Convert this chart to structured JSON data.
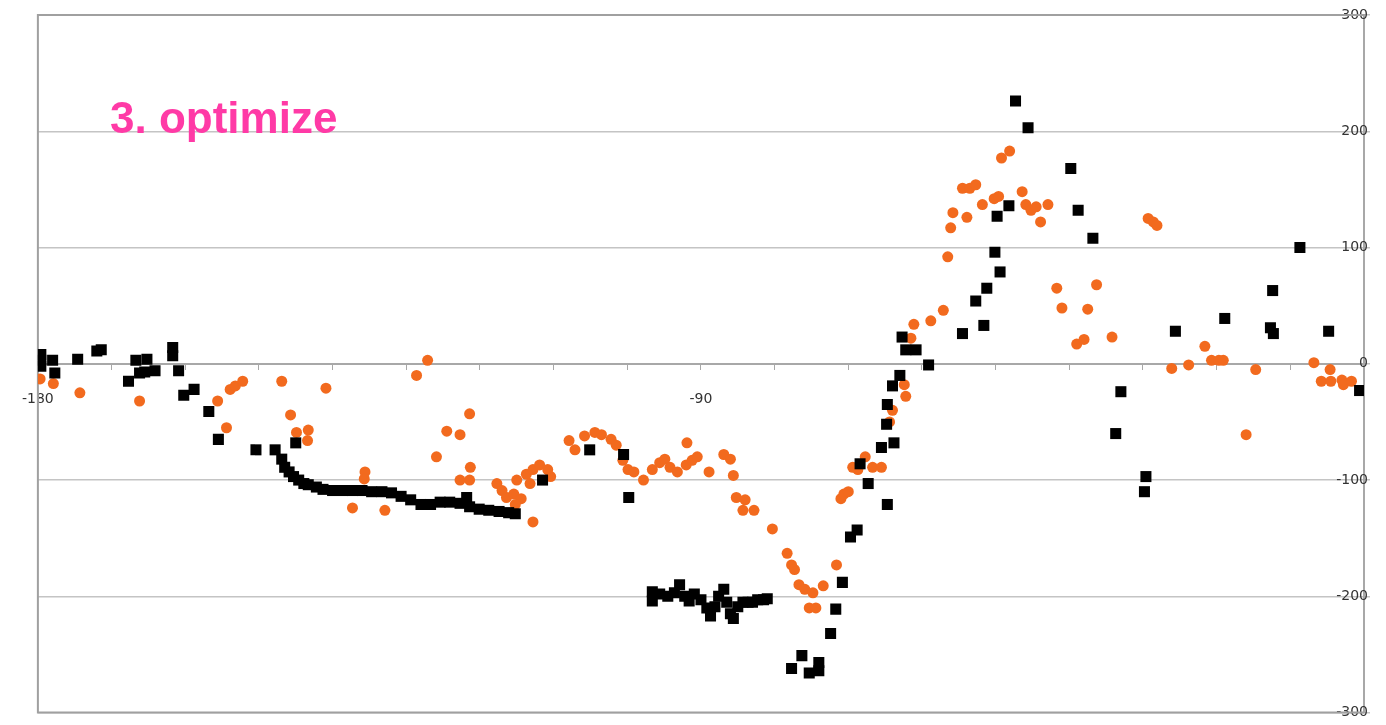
{
  "chart_data": {
    "type": "scatter",
    "title": "3. optimize",
    "xlim": [
      -180,
      0
    ],
    "xticks": [
      -180,
      {
        "value": -170,
        "label": null
      },
      {
        "value": -160,
        "label": null
      },
      {
        "value": -150,
        "label": null
      },
      {
        "value": -140,
        "label": null
      },
      {
        "value": -130,
        "label": null
      },
      {
        "value": -120,
        "label": null
      },
      {
        "value": -110,
        "label": null
      },
      {
        "value": -100,
        "label": null
      },
      -90,
      {
        "value": -80,
        "label": null
      },
      {
        "value": -70,
        "label": null
      },
      {
        "value": -60,
        "label": null
      },
      {
        "value": -50,
        "label": null
      },
      {
        "value": -40,
        "label": null
      },
      {
        "value": -30,
        "label": null
      },
      {
        "value": -20,
        "label": null
      },
      {
        "value": -10,
        "label": null
      },
      {
        "value": 0,
        "label": null
      }
    ],
    "ylim": [
      -300,
      300
    ],
    "yticks": [
      -300,
      -200,
      -100,
      0,
      100,
      200,
      300
    ],
    "grid": "y",
    "series": [
      {
        "color": "#000000",
        "marker": "square",
        "x": [
          -179.6,
          -179.6,
          -179.6,
          -178,
          -177.7,
          -174.6,
          -172,
          -171.4,
          -167.7,
          -166.7,
          -166.2,
          -165.5,
          -165.2,
          -164.1,
          -161.7,
          -161.7,
          -160.9,
          -160.2,
          -158.8,
          -156.8,
          -155.5,
          -150.4,
          -147.8,
          -145,
          -146.9,
          -146.5,
          -145.9,
          -145.3,
          -144.6,
          -143.9,
          -143.3,
          -142.2,
          -141.3,
          -140,
          -138.6,
          -137.3,
          -136,
          -134.7,
          -133.3,
          -132,
          -130.7,
          -129.4,
          -128,
          -126.7,
          -125.4,
          -124.1,
          -122.7,
          -121.8,
          -121.4,
          -120.1,
          -118.8,
          -117.4,
          -116.1,
          -115.2,
          -111.5,
          -105.1,
          -100.5,
          -99.8,
          -96.6,
          -96.6,
          -95.6,
          -94.5,
          -93.6,
          -92.9,
          -92.2,
          -91.6,
          -90.9,
          -90,
          -89.2,
          -88.7,
          -88.1,
          -87.6,
          -86.9,
          -86.5,
          -86,
          -85.6,
          -85,
          -84.3,
          -83.6,
          -83,
          -82.3,
          -81.5,
          -81,
          -77.7,
          -76.3,
          -75.3,
          -74,
          -74,
          -72.4,
          -71.7,
          -70.8,
          -69.7,
          -68.8,
          -68.4,
          -67.3,
          -65.5,
          -64.7,
          -63.8,
          -64.8,
          -64.7,
          -64,
          -63,
          -62.7,
          -62.2,
          -60.8,
          -59.1,
          -54.5,
          -52.7,
          -51.6,
          -51.2,
          -50.1,
          -49.4,
          -49.8,
          -48.2,
          -47.3,
          -45.6,
          -39.8,
          -38.8,
          -36.8,
          -33.7,
          -33,
          -29.8,
          -29.6,
          -25.6,
          -18.9,
          -12.7,
          -12.4,
          -12.3,
          -8.7,
          -4.8,
          -0.6
        ],
        "values": [
          8,
          3,
          -2,
          3,
          -8,
          4,
          11,
          12,
          -15,
          3,
          -8,
          -7,
          4,
          -6,
          14,
          7,
          -6,
          -27,
          -22,
          -41,
          -65,
          -74,
          -74,
          -68,
          -82,
          -89,
          -93,
          -97,
          -100,
          -103,
          -104,
          -106,
          -108,
          -109,
          -109,
          -109,
          -109,
          -110,
          -110,
          -111,
          -114,
          -117,
          -121,
          -121,
          -119,
          -119,
          -120,
          -115,
          -123,
          -125,
          -126,
          -127,
          -128,
          -129,
          -100,
          -74,
          -78,
          -115,
          -196,
          -204,
          -198,
          -200,
          -197,
          -190,
          -200,
          -204,
          -198,
          -203,
          -210,
          -217,
          -209,
          -200,
          -194,
          -205,
          -215,
          -219,
          -209,
          -205,
          -205,
          -205,
          -203,
          -203,
          -202,
          -262,
          -251,
          -266,
          -257,
          -264,
          -232,
          -211,
          -188,
          -149,
          -143,
          -86,
          -103,
          -72,
          -121,
          -68,
          -52,
          -35,
          -19,
          -10,
          23,
          12,
          12,
          -1,
          26,
          54,
          33,
          65,
          96,
          79,
          127,
          136,
          226,
          203,
          168,
          132,
          108,
          -60,
          -24,
          -110,
          -97,
          28,
          39,
          31,
          63,
          26,
          100,
          28,
          -23
        ]
      },
      {
        "color": "#f26a1e",
        "marker": "circle",
        "x": [
          -179.7,
          -177.9,
          -174.3,
          -166.2,
          -155.6,
          -154.4,
          -153.9,
          -153.2,
          -152.2,
          -146.9,
          -145.7,
          -144.9,
          -143.3,
          -143.4,
          -140.9,
          -137.3,
          -135.6,
          -135.7,
          -132.9,
          -128.6,
          -127.1,
          -125.9,
          -124.5,
          -122.7,
          -122.7,
          -121.4,
          -121.3,
          -121.4,
          -117.7,
          -117,
          -116.4,
          -115.4,
          -115,
          -114.4,
          -115.2,
          -112.8,
          -113.7,
          -112.8,
          -111.9,
          -110.8,
          -110.4,
          -113.2,
          -107.9,
          -107.1,
          -105.8,
          -104.4,
          -103.5,
          -102.2,
          -101.5,
          -100.6,
          -99.9,
          -99.1,
          -97.8,
          -96.6,
          -95.6,
          -94.9,
          -94.2,
          -93.2,
          -92,
          -91.2,
          -90.5,
          -91.9,
          -88.9,
          -86.9,
          -86,
          -85.6,
          -85.2,
          -84,
          -84.3,
          -82.8,
          -80.3,
          -78.3,
          -77.7,
          -77.3,
          -76.7,
          -75.9,
          -74.8,
          -75.3,
          -74.4,
          -73.4,
          -71.6,
          -71,
          -70.6,
          -70,
          -69.4,
          -68.7,
          -67.7,
          -66.7,
          -65.5,
          -64.4,
          -64,
          -62.4,
          -62.2,
          -61.5,
          -61.1,
          -58.8,
          -57.1,
          -56.5,
          -56.1,
          -55.8,
          -53.9,
          -54.5,
          -53.5,
          -52.7,
          -51.8,
          -50.2,
          -49.6,
          -49.2,
          -48.1,
          -46.4,
          -45.9,
          -45.2,
          -44.5,
          -43.9,
          -42.9,
          -41.7,
          -41,
          -39,
          -38,
          -37.5,
          -36.3,
          -34.2,
          -29.3,
          -28.6,
          -28.1,
          -26.1,
          -23.8,
          -21.6,
          -20.7,
          -19.7,
          -19.1,
          -16,
          -14.7,
          -6.8,
          -4.6,
          -5.8,
          -4.5,
          -3,
          -2.8,
          -1.7
        ],
        "values": [
          -13,
          -17,
          -25,
          -32,
          -32,
          -55,
          -22,
          -19,
          -15,
          -15,
          -44,
          -59,
          -57,
          -66,
          -21,
          -124,
          -93,
          -99,
          -126,
          -10,
          3,
          -80,
          -58,
          -61,
          -100,
          -43,
          -89,
          -100,
          -103,
          -109,
          -115,
          -112,
          -100,
          -116,
          -121,
          -136,
          -95,
          -91,
          -87,
          -91,
          -97,
          -103,
          -66,
          -74,
          -62,
          -59,
          -61,
          -65,
          -70,
          -83,
          -91,
          -93,
          -100,
          -91,
          -85,
          -82,
          -89,
          -93,
          -87,
          -83,
          -80,
          -68,
          -93,
          -78,
          -82,
          -96,
          -115,
          -117,
          -126,
          -126,
          -142,
          -163,
          -173,
          -177,
          -190,
          -194,
          -197,
          -210,
          -210,
          -191,
          -173,
          -116,
          -112,
          -110,
          -89,
          -91,
          -80,
          -89,
          -89,
          -50,
          -40,
          -18,
          -28,
          22,
          34,
          37,
          46,
          92,
          117,
          130,
          126,
          151,
          151,
          154,
          137,
          142,
          144,
          177,
          183,
          148,
          137,
          132,
          135,
          122,
          137,
          65,
          48,
          17,
          21,
          47,
          68,
          23,
          125,
          122,
          119,
          -4,
          -1,
          15,
          3,
          3,
          3,
          -61,
          -5,
          1,
          -5,
          -15,
          -15,
          -14,
          -18,
          -15
        ]
      }
    ]
  }
}
